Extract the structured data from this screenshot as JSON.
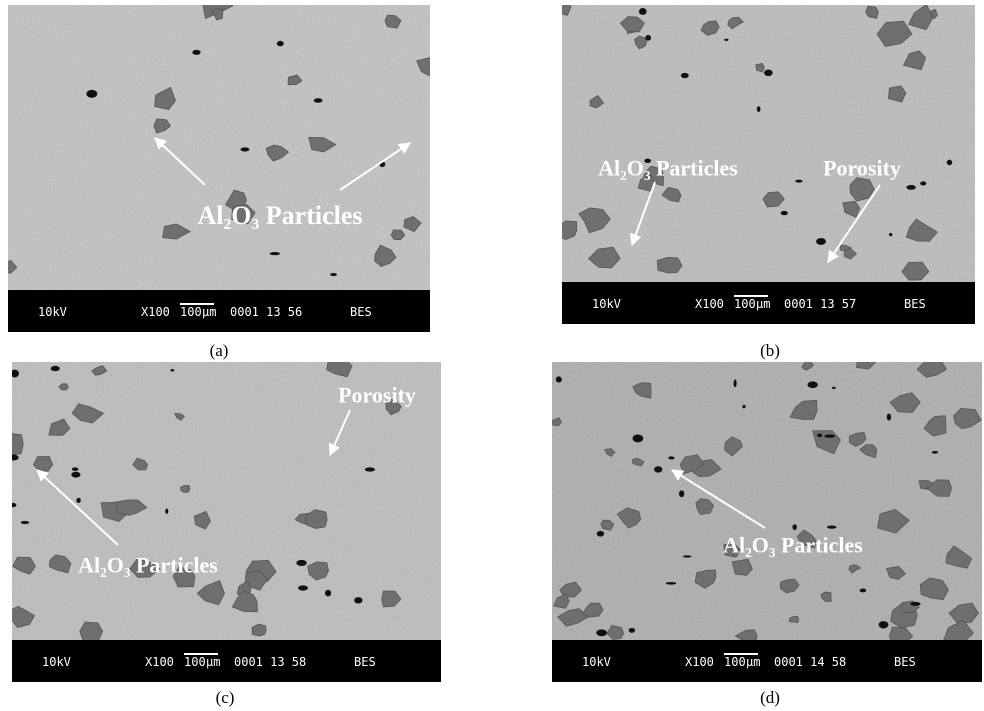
{
  "panels": [
    {
      "caption": "(a)",
      "info": {
        "voltage": "10kV",
        "magnification": "X100",
        "scale": "100",
        "unit": "µm",
        "code": "0001 13 56",
        "mode": "BES"
      },
      "annotations": [
        "Al₂O₃ Particles"
      ]
    },
    {
      "caption": "(b)",
      "info": {
        "voltage": "10kV",
        "magnification": "X100",
        "scale": "100",
        "unit": "µm",
        "code": "0001 13 57",
        "mode": "BES"
      },
      "annotations": [
        "Al₂O₃ Particles",
        "Porosity"
      ]
    },
    {
      "caption": "(c)",
      "info": {
        "voltage": "10kV",
        "magnification": "X100",
        "scale": "100",
        "unit": "µm",
        "code": "0001 13 58",
        "mode": "BES"
      },
      "annotations": [
        "Porosity",
        "Al₂O₃ Particles"
      ]
    },
    {
      "caption": "(d)",
      "info": {
        "voltage": "10kV",
        "magnification": "X100",
        "scale": "100",
        "unit": "µm",
        "code": "0001 14 58",
        "mode": "BES"
      },
      "annotations": [
        "Al₂O₃ Particles"
      ]
    }
  ]
}
